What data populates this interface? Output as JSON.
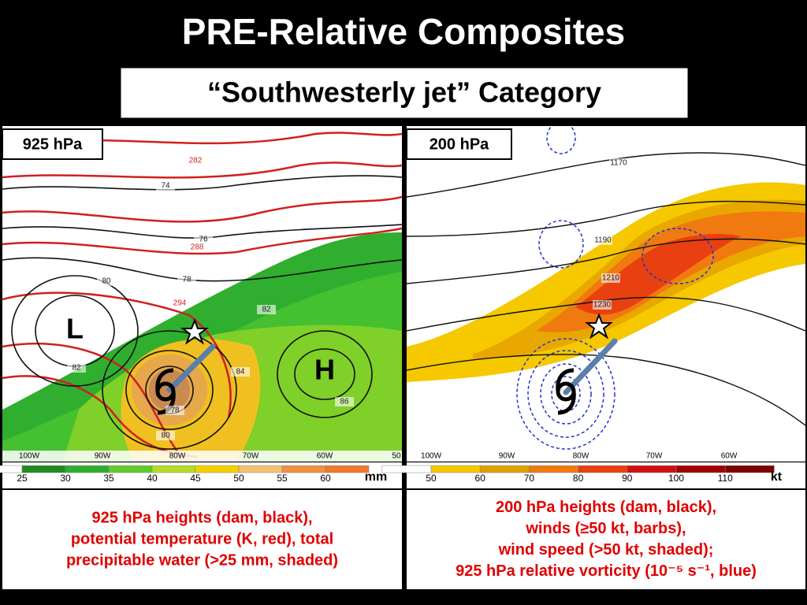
{
  "title": "PRE-Relative Composites",
  "subtitle": "“Southwesterly jet” Category",
  "panels": [
    {
      "label": "925 hPa",
      "contour_labels": [
        "74",
        "76",
        "78",
        "80",
        "82",
        "82",
        "84",
        "86",
        "78",
        "80"
      ],
      "theta_labels": [
        "282",
        "288",
        "294"
      ],
      "centers": [
        "L",
        "H"
      ],
      "longitudes": [
        "100W",
        "90W",
        "80W",
        "70W",
        "60W",
        "50"
      ],
      "colorbar": {
        "ticks": [
          25,
          30,
          35,
          40,
          45,
          50,
          55,
          60
        ],
        "unit": "mm"
      },
      "caption": [
        "925 hPa heights (dam, black),",
        "potential temperature (K, red), total",
        "precipitable water (>25 mm, shaded)"
      ]
    },
    {
      "label": "200 hPa",
      "contour_labels": [
        "1170",
        "1190",
        "1210",
        "1230"
      ],
      "theta_labels": [],
      "centers": [],
      "longitudes": [
        "100W",
        "90W",
        "80W",
        "70W",
        "60W"
      ],
      "colorbar": {
        "ticks": [
          50,
          60,
          70,
          80,
          90,
          100,
          110
        ],
        "unit": "kt"
      },
      "caption": [
        "200 hPa heights (dam, black),",
        "winds (≥50 kt, barbs),",
        "wind speed (>50 kt, shaded);",
        "925 hPa relative vorticity (10⁻⁵ s⁻¹, blue)"
      ]
    }
  ]
}
